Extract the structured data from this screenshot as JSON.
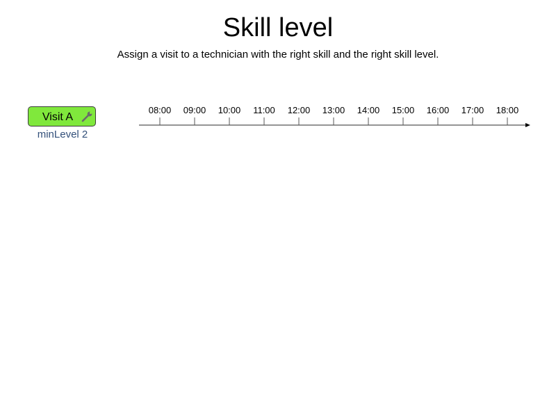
{
  "page": {
    "title": "Skill level",
    "subtitle": "Assign a visit to a technician with the right skill and the right skill level."
  },
  "visit": {
    "label": "Visit A",
    "min_level_text": "minLevel 2",
    "icon": "wrench-icon",
    "fill_color": "#80e83c",
    "border_color": "#3c3c3c",
    "min_level_color": "#33507a"
  },
  "timeline": {
    "ticks": [
      "08:00",
      "09:00",
      "10:00",
      "11:00",
      "12:00",
      "13:00",
      "14:00",
      "15:00",
      "16:00",
      "17:00",
      "18:00"
    ],
    "axis_color": "#555555"
  }
}
